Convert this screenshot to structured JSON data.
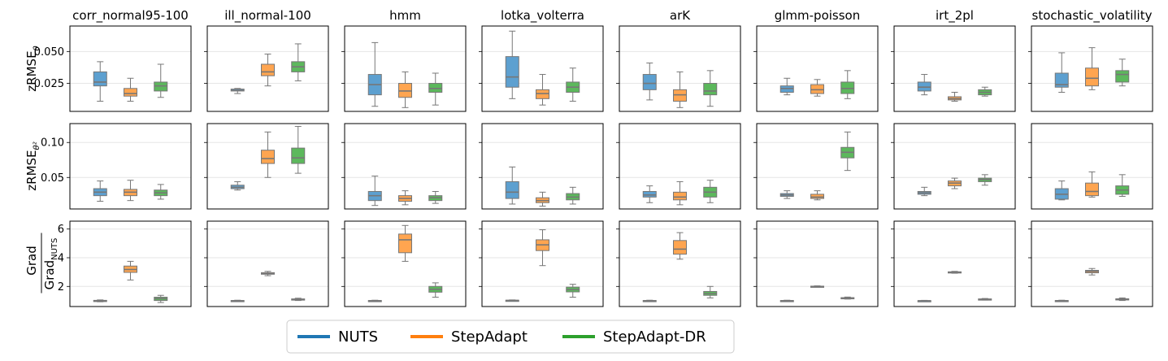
{
  "chart_data": {
    "type": "boxplot-grid",
    "columns": [
      "corr_normal95-100",
      "ill_normal-100",
      "hmm",
      "lotka_volterra",
      "arK",
      "glmm-poisson",
      "irt_2pl",
      "stochastic_volatility"
    ],
    "series": [
      {
        "name": "NUTS",
        "color": "#5da0d0",
        "legend_color": "#1f77b4"
      },
      {
        "name": "StepAdapt",
        "color": "#ffa550",
        "legend_color": "#ff7f0e"
      },
      {
        "name": "StepAdapt-DR",
        "color": "#5cb85c",
        "legend_color": "#2ca02c"
      }
    ],
    "rows": [
      {
        "ylabel": "zRMSE",
        "ylabel_sub": "θ",
        "ylim": [
          0.003,
          0.07
        ],
        "yticks": [
          0.025,
          0.05
        ],
        "ytick_labels": [
          "0.025",
          "0.050"
        ],
        "boxes": [
          [
            [
              0.011,
              0.023,
              0.026,
              0.034,
              0.042
            ],
            [
              0.011,
              0.015,
              0.017,
              0.021,
              0.029
            ],
            [
              0.014,
              0.019,
              0.023,
              0.026,
              0.04
            ]
          ],
          [
            [
              0.017,
              0.019,
              0.0195,
              0.0205,
              0.021
            ],
            [
              0.023,
              0.031,
              0.034,
              0.04,
              0.048
            ],
            [
              0.027,
              0.034,
              0.038,
              0.042,
              0.056
            ]
          ],
          [
            [
              0.007,
              0.016,
              0.024,
              0.032,
              0.057
            ],
            [
              0.006,
              0.014,
              0.019,
              0.025,
              0.034
            ],
            [
              0.008,
              0.018,
              0.021,
              0.025,
              0.033
            ]
          ],
          [
            [
              0.013,
              0.022,
              0.03,
              0.046,
              0.066
            ],
            [
              0.008,
              0.013,
              0.017,
              0.02,
              0.032
            ],
            [
              0.011,
              0.018,
              0.022,
              0.026,
              0.037
            ]
          ],
          [
            [
              0.012,
              0.02,
              0.025,
              0.032,
              0.041
            ],
            [
              0.006,
              0.011,
              0.016,
              0.02,
              0.034
            ],
            [
              0.007,
              0.016,
              0.019,
              0.025,
              0.035
            ]
          ],
          [
            [
              0.016,
              0.018,
              0.021,
              0.023,
              0.029
            ],
            [
              0.015,
              0.017,
              0.02,
              0.024,
              0.028
            ],
            [
              0.013,
              0.017,
              0.021,
              0.026,
              0.035
            ]
          ],
          [
            [
              0.016,
              0.019,
              0.022,
              0.026,
              0.032
            ],
            [
              0.011,
              0.012,
              0.013,
              0.0145,
              0.018
            ],
            [
              0.015,
              0.016,
              0.018,
              0.02,
              0.022
            ]
          ],
          [
            [
              0.018,
              0.022,
              0.024,
              0.033,
              0.049
            ],
            [
              0.02,
              0.023,
              0.029,
              0.037,
              0.053
            ],
            [
              0.023,
              0.026,
              0.032,
              0.035,
              0.044
            ]
          ]
        ]
      },
      {
        "ylabel": "zRMSE",
        "ylabel_sub": "θ²",
        "ylim": [
          0.005,
          0.127
        ],
        "yticks": [
          0.05,
          0.1
        ],
        "ytick_labels": [
          "0.05",
          "0.10"
        ],
        "boxes": [
          [
            [
              0.016,
              0.024,
              0.029,
              0.034,
              0.045
            ],
            [
              0.017,
              0.024,
              0.029,
              0.033,
              0.046
            ],
            [
              0.019,
              0.024,
              0.028,
              0.032,
              0.04
            ]
          ],
          [
            [
              0.032,
              0.034,
              0.036,
              0.039,
              0.044
            ],
            [
              0.05,
              0.07,
              0.077,
              0.089,
              0.115
            ],
            [
              0.056,
              0.07,
              0.078,
              0.092,
              0.123
            ]
          ],
          [
            [
              0.01,
              0.017,
              0.024,
              0.03,
              0.052
            ],
            [
              0.011,
              0.016,
              0.02,
              0.024,
              0.031
            ],
            [
              0.013,
              0.017,
              0.021,
              0.024,
              0.03
            ]
          ],
          [
            [
              0.012,
              0.02,
              0.029,
              0.044,
              0.065
            ],
            [
              0.009,
              0.014,
              0.017,
              0.021,
              0.029
            ],
            [
              0.012,
              0.018,
              0.022,
              0.027,
              0.036
            ]
          ],
          [
            [
              0.014,
              0.022,
              0.025,
              0.03,
              0.038
            ],
            [
              0.011,
              0.018,
              0.022,
              0.029,
              0.044
            ],
            [
              0.014,
              0.022,
              0.029,
              0.036,
              0.046
            ]
          ],
          [
            [
              0.02,
              0.023,
              0.025,
              0.027,
              0.031
            ],
            [
              0.018,
              0.02,
              0.022,
              0.026,
              0.031
            ],
            [
              0.06,
              0.078,
              0.086,
              0.093,
              0.115
            ]
          ],
          [
            [
              0.024,
              0.026,
              0.028,
              0.03,
              0.036
            ],
            [
              0.034,
              0.038,
              0.042,
              0.045,
              0.049
            ],
            [
              0.039,
              0.044,
              0.047,
              0.049,
              0.054
            ]
          ],
          [
            [
              0.018,
              0.019,
              0.026,
              0.034,
              0.045
            ],
            [
              0.022,
              0.024,
              0.03,
              0.042,
              0.058
            ],
            [
              0.023,
              0.026,
              0.032,
              0.038,
              0.054
            ]
          ]
        ]
      },
      {
        "ylabel": "Grad",
        "ylabel_den": "Grad",
        "ylabel_den_sub": "NUTS",
        "ylim": [
          0.6,
          6.55
        ],
        "yticks": [
          2,
          4,
          6
        ],
        "ytick_labels": [
          "2",
          "4",
          "6"
        ],
        "boxes": [
          [
            [
              0.93,
              0.97,
              1.0,
              1.03,
              1.06
            ],
            [
              2.45,
              2.98,
              3.18,
              3.42,
              3.75
            ],
            [
              0.88,
              1.02,
              1.15,
              1.25,
              1.38
            ]
          ],
          [
            [
              0.96,
              0.98,
              1.0,
              1.02,
              1.04
            ],
            [
              2.75,
              2.85,
              2.9,
              2.96,
              3.05
            ],
            [
              1.02,
              1.06,
              1.1,
              1.13,
              1.18
            ]
          ],
          [
            [
              0.96,
              0.98,
              1.0,
              1.02,
              1.04
            ],
            [
              3.75,
              4.35,
              5.25,
              5.65,
              6.25
            ],
            [
              1.25,
              1.6,
              1.8,
              2.0,
              2.25
            ]
          ],
          [
            [
              0.98,
              1.0,
              1.02,
              1.04,
              1.06
            ],
            [
              3.45,
              4.5,
              4.9,
              5.25,
              5.95
            ],
            [
              1.25,
              1.62,
              1.78,
              1.95,
              2.15
            ]
          ],
          [
            [
              0.96,
              0.98,
              1.0,
              1.02,
              1.04
            ],
            [
              3.9,
              4.25,
              4.6,
              5.2,
              5.75
            ],
            [
              1.2,
              1.38,
              1.5,
              1.65,
              2.0
            ]
          ],
          [
            [
              0.96,
              0.98,
              1.0,
              1.02,
              1.04
            ],
            [
              1.96,
              1.98,
              2.0,
              2.02,
              2.04
            ],
            [
              1.12,
              1.15,
              1.18,
              1.22,
              1.26
            ]
          ],
          [
            [
              0.97,
              0.99,
              1.0,
              1.01,
              1.03
            ],
            [
              2.92,
              2.95,
              2.98,
              3.02,
              3.05
            ],
            [
              1.05,
              1.08,
              1.1,
              1.13,
              1.16
            ]
          ],
          [
            [
              0.96,
              0.98,
              1.0,
              1.02,
              1.04
            ],
            [
              2.8,
              2.95,
              3.05,
              3.12,
              3.25
            ],
            [
              1.02,
              1.06,
              1.1,
              1.14,
              1.2
            ]
          ]
        ]
      }
    ],
    "grid": "horizontal",
    "legend_position": "bottom-center"
  }
}
